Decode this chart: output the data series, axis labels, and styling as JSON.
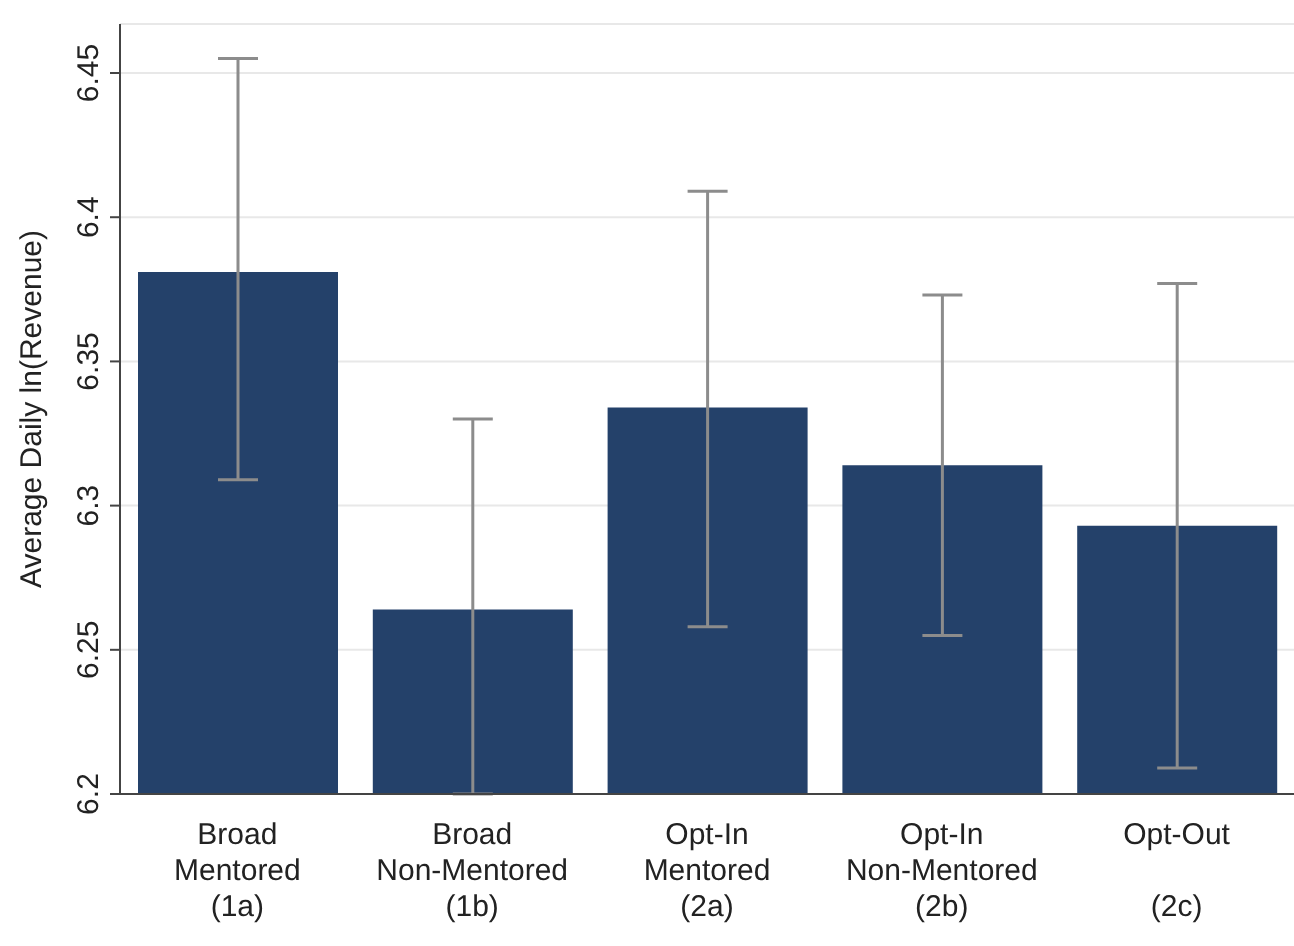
{
  "chart_data": {
    "type": "bar",
    "ylabel": "Average Daily ln(Revenue)",
    "categories": [
      "Broad\nMentored\n(1a)",
      "Broad\nNon-Mentored\n(1b)",
      "Opt-In\nMentored\n(2a)",
      "Opt-In\nNon-Mentored\n(2b)",
      "Opt-Out\n\n(2c)"
    ],
    "values": [
      6.381,
      6.264,
      6.334,
      6.314,
      6.293
    ],
    "errors": [
      [
        6.309,
        6.455
      ],
      [
        6.2,
        6.33
      ],
      [
        6.258,
        6.409
      ],
      [
        6.255,
        6.373
      ],
      [
        6.209,
        6.377
      ]
    ],
    "color": "#24416a",
    "ylim": [
      6.2,
      6.467
    ],
    "yticks": [
      6.2,
      6.25,
      6.3,
      6.35,
      6.4,
      6.45
    ],
    "grid": "y"
  }
}
